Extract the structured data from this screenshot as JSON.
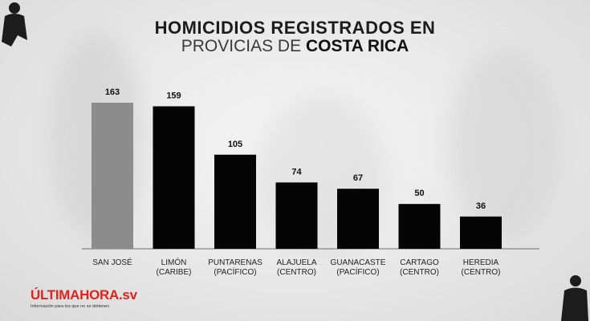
{
  "title": {
    "line1": "HOMICIDIOS REGISTRADOS EN",
    "line2_thin": "PROVICIAS DE",
    "line2_bold": "COSTA RICA"
  },
  "brand": {
    "name": "ÚLTIMAHORA",
    "suffix": ".sv",
    "tagline": "Información para los que no se detienen"
  },
  "colors": {
    "highlight_bar": "#8c8c8c",
    "bar": "#050505",
    "brand_red": "#e0231c"
  },
  "chart_data": {
    "type": "bar",
    "categories": [
      [
        "SAN JOSÉ"
      ],
      [
        "LIMÓN",
        "(CARIBE)"
      ],
      [
        "PUNTARENAS",
        "(PACÍFICO)"
      ],
      [
        "ALAJUELA",
        "(CENTRO)"
      ],
      [
        "GUANACASTE",
        "(PACÍFICO)"
      ],
      [
        "CARTAGO",
        "(CENTRO)"
      ],
      [
        "HEREDIA",
        "(CENTRO)"
      ]
    ],
    "values": [
      163,
      159,
      105,
      74,
      67,
      50,
      36
    ],
    "highlight_index": 0,
    "data_labels": true,
    "grid": false,
    "ylim": [
      0,
      163
    ]
  }
}
